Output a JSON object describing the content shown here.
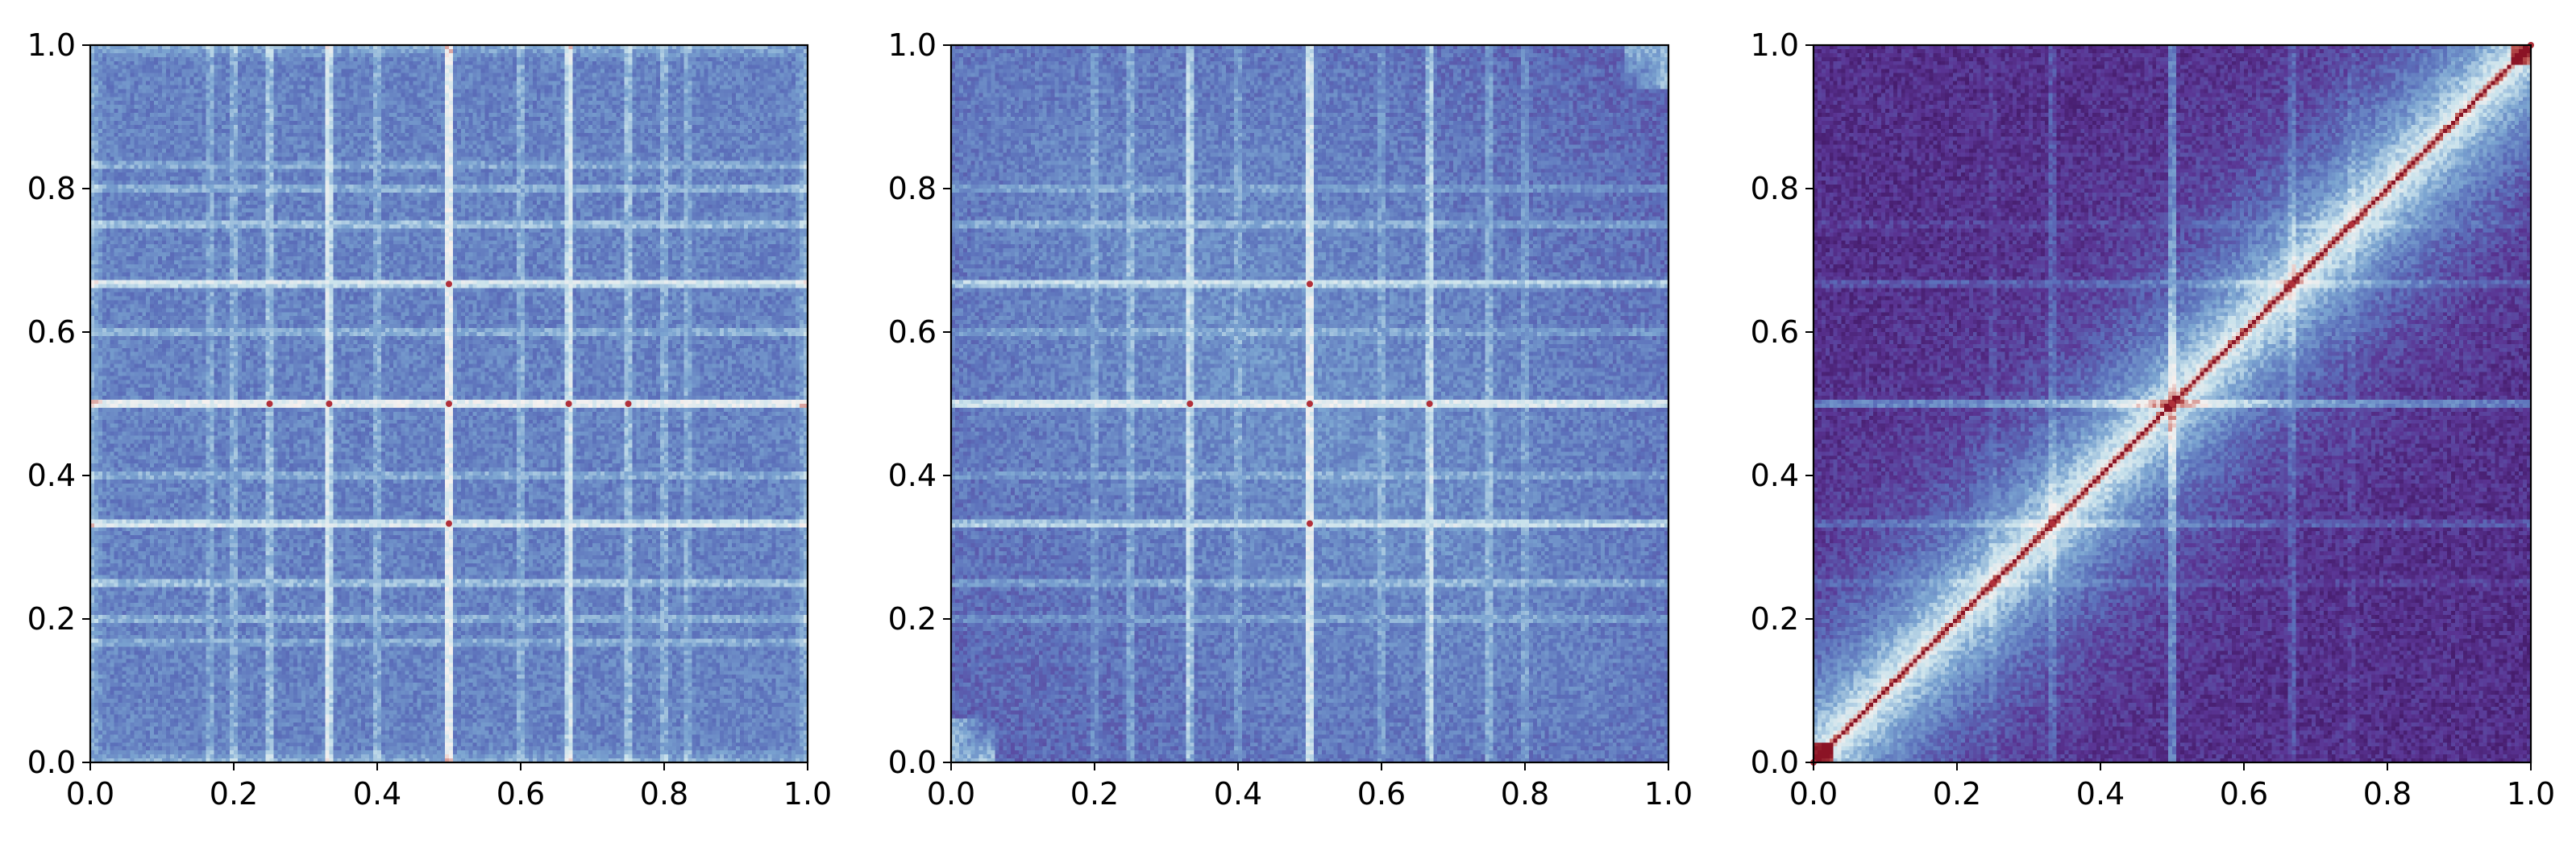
{
  "figure": {
    "colormap_stops": [
      "#3a0d55",
      "#5a3594",
      "#5b6fba",
      "#7aa3d0",
      "#c9e2ec",
      "#f6f1ef",
      "#c05b55",
      "#8b1325"
    ]
  },
  "chart_data": [
    {
      "type": "heatmap",
      "title": "",
      "xlabel": "",
      "ylabel": "",
      "xlim": [
        0.0,
        1.0
      ],
      "ylim": [
        0.0,
        1.0
      ],
      "xticks": [
        "0.0",
        "0.2",
        "0.4",
        "0.6",
        "0.8",
        "1.0"
      ],
      "yticks": [
        "0.0",
        "0.2",
        "0.4",
        "0.6",
        "0.8",
        "1.0"
      ],
      "grid": false,
      "legend": "none",
      "diagonal_band": false,
      "gradient": "uniform",
      "base_level": 0.34,
      "bright_lines": [
        {
          "pos": 0.5,
          "level": 0.84
        },
        {
          "pos": 0.333,
          "level": 0.7
        },
        {
          "pos": 0.667,
          "level": 0.7
        },
        {
          "pos": 0.25,
          "level": 0.52
        },
        {
          "pos": 0.75,
          "level": 0.52
        },
        {
          "pos": 0.2,
          "level": 0.45
        },
        {
          "pos": 0.4,
          "level": 0.45
        },
        {
          "pos": 0.6,
          "level": 0.45
        },
        {
          "pos": 0.8,
          "level": 0.45
        },
        {
          "pos": 0.167,
          "level": 0.42
        },
        {
          "pos": 0.833,
          "level": 0.42
        }
      ],
      "hot_points": [
        {
          "x": 0.5,
          "y": 0.5
        },
        {
          "x": 0.5,
          "y": 0.333
        },
        {
          "x": 0.5,
          "y": 0.667
        },
        {
          "x": 0.333,
          "y": 0.5
        },
        {
          "x": 0.667,
          "y": 0.5
        },
        {
          "x": 0.25,
          "y": 0.5
        },
        {
          "x": 0.75,
          "y": 0.5
        }
      ]
    },
    {
      "type": "heatmap",
      "title": "",
      "xlabel": "",
      "ylabel": "",
      "xlim": [
        0.0,
        1.0
      ],
      "ylim": [
        0.0,
        1.0
      ],
      "xticks": [
        "0.0",
        "0.2",
        "0.4",
        "0.6",
        "0.8",
        "1.0"
      ],
      "yticks": [
        "0.0",
        "0.2",
        "0.4",
        "0.6",
        "0.8",
        "1.0"
      ],
      "grid": false,
      "legend": "none",
      "diagonal_band": false,
      "gradient": "anti-diagonal",
      "base_level": 0.3,
      "bright_lines": [
        {
          "pos": 0.5,
          "level": 0.76
        },
        {
          "pos": 0.333,
          "level": 0.62
        },
        {
          "pos": 0.667,
          "level": 0.62
        },
        {
          "pos": 0.25,
          "level": 0.46
        },
        {
          "pos": 0.75,
          "level": 0.46
        },
        {
          "pos": 0.2,
          "level": 0.4
        },
        {
          "pos": 0.4,
          "level": 0.4
        },
        {
          "pos": 0.6,
          "level": 0.4
        },
        {
          "pos": 0.8,
          "level": 0.4
        }
      ],
      "hot_points": [
        {
          "x": 0.5,
          "y": 0.5
        },
        {
          "x": 0.333,
          "y": 0.5
        },
        {
          "x": 0.667,
          "y": 0.5
        },
        {
          "x": 0.5,
          "y": 0.333
        },
        {
          "x": 0.5,
          "y": 0.667
        }
      ]
    },
    {
      "type": "heatmap",
      "title": "",
      "xlabel": "",
      "ylabel": "",
      "xlim": [
        0.0,
        1.0
      ],
      "ylim": [
        0.0,
        1.0
      ],
      "xticks": [
        "0.0",
        "0.2",
        "0.4",
        "0.6",
        "0.8",
        "1.0"
      ],
      "yticks": [
        "0.0",
        "0.2",
        "0.4",
        "0.6",
        "0.8",
        "1.0"
      ],
      "grid": false,
      "legend": "none",
      "diagonal_band": true,
      "gradient": "diagonal-distance",
      "base_level": 0.12,
      "bright_lines": [
        {
          "pos": 0.5,
          "level": 0.62
        },
        {
          "pos": 0.333,
          "level": 0.42
        },
        {
          "pos": 0.667,
          "level": 0.42
        },
        {
          "pos": 0.25,
          "level": 0.33
        },
        {
          "pos": 0.75,
          "level": 0.33
        }
      ],
      "hot_points": [
        {
          "x": 0.5,
          "y": 0.5
        },
        {
          "x": 0.333,
          "y": 0.333
        },
        {
          "x": 0.667,
          "y": 0.667
        },
        {
          "x": 0.25,
          "y": 0.25
        },
        {
          "x": 0.75,
          "y": 0.75
        },
        {
          "x": 0.0,
          "y": 0.0
        },
        {
          "x": 1.0,
          "y": 1.0
        }
      ]
    }
  ]
}
